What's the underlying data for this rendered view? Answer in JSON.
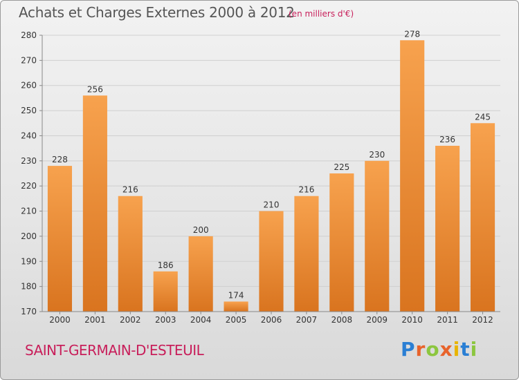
{
  "header": {
    "title": "Achats et Charges Externes 2000 à 2012",
    "unit": "(en milliers d'€)"
  },
  "footer": {
    "commune": "SAINT-GERMAIN-D'ESTEUIL",
    "logo_letters": [
      "P",
      "r",
      "o",
      "x",
      "i",
      "t",
      "i"
    ],
    "logo_colors": [
      "#2a7fd4",
      "#e8632b",
      "#8cc63f",
      "#e8632b",
      "#e8b400",
      "#2a7fd4",
      "#8cc63f"
    ]
  },
  "chart_data": {
    "type": "bar",
    "categories": [
      "2000",
      "2001",
      "2002",
      "2003",
      "2004",
      "2005",
      "2006",
      "2007",
      "2008",
      "2009",
      "2010",
      "2011",
      "2012"
    ],
    "values": [
      228,
      256,
      216,
      186,
      200,
      174,
      210,
      216,
      225,
      230,
      278,
      236,
      245
    ],
    "ylim": [
      170,
      280
    ],
    "yticks": [
      170,
      180,
      190,
      200,
      210,
      220,
      230,
      240,
      250,
      260,
      270,
      280
    ],
    "grid": true,
    "colors": {
      "bar_light": "#f7a24e",
      "bar_dark": "#d9741f",
      "grid": "#cfcfcf",
      "axis": "#888888"
    }
  }
}
